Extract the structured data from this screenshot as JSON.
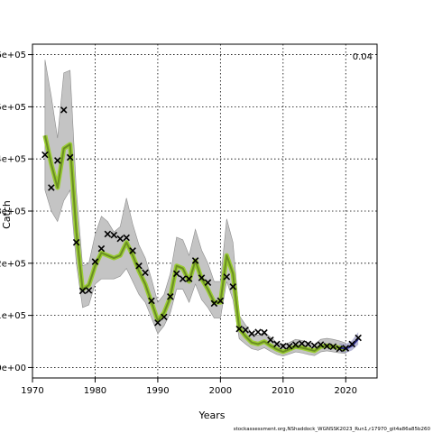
{
  "chart_data": {
    "type": "line",
    "title": "",
    "xlabel": "Years",
    "ylabel": "Catch",
    "corner_label": "0.04",
    "footer": "stockassessment.org,NShaddock_WGNSSK2023_Run1,r17970_git4a86a85b260",
    "xlim": [
      1970,
      2025
    ],
    "ylim": [
      -20000,
      620000
    ],
    "x_ticks": [
      1970,
      1980,
      1990,
      2000,
      2010,
      2020
    ],
    "y_ticks": [
      0,
      100000,
      200000,
      300000,
      400000,
      500000,
      600000
    ],
    "y_tick_labels": [
      "0e+00",
      "1e+05",
      "2e+05",
      "3e+05",
      "4e+05",
      "5e+05",
      "6e+05"
    ],
    "grid": true,
    "colors": {
      "band": "#c4c4c4",
      "band_edge": "#8c8c8c",
      "estimate": "#6b8e23",
      "estimate_outline": "#9acd32",
      "forecast": "#2b2b8a",
      "obs": "#000000"
    },
    "observed": {
      "x": [
        1972,
        1973,
        1974,
        1975,
        1976,
        1977,
        1978,
        1979,
        1980,
        1981,
        1982,
        1983,
        1984,
        1985,
        1986,
        1987,
        1988,
        1989,
        1990,
        1991,
        1992,
        1993,
        1994,
        1995,
        1996,
        1997,
        1998,
        1999,
        2000,
        2001,
        2002,
        2003,
        2004,
        2005,
        2006,
        2007,
        2008,
        2009,
        2010,
        2011,
        2012,
        2013,
        2014,
        2015,
        2016,
        2017,
        2018,
        2019,
        2020,
        2021,
        2022
      ],
      "y": [
        408000,
        345000,
        397000,
        494000,
        403000,
        240000,
        147000,
        148000,
        203000,
        228000,
        256000,
        254000,
        247000,
        249000,
        224000,
        195000,
        182000,
        128000,
        86000,
        97000,
        136000,
        180000,
        170000,
        170000,
        205000,
        172000,
        163000,
        123000,
        128000,
        174000,
        155000,
        74000,
        72000,
        65000,
        68000,
        67000,
        53000,
        45000,
        41000,
        41000,
        44000,
        46000,
        45000,
        42000,
        44000,
        41000,
        40000,
        36000,
        37000,
        45000,
        57000
      ]
    },
    "estimate": {
      "x": [
        1972,
        1973,
        1974,
        1975,
        1976,
        1977,
        1978,
        1979,
        1980,
        1981,
        1982,
        1983,
        1984,
        1985,
        1986,
        1987,
        1988,
        1989,
        1990,
        1991,
        1992,
        1993,
        1994,
        1995,
        1996,
        1997,
        1998,
        1999,
        2000,
        2001,
        2002,
        2003,
        2004,
        2005,
        2006,
        2007,
        2008,
        2009,
        2010,
        2011,
        2012,
        2013,
        2014,
        2015,
        2016,
        2017,
        2018,
        2019,
        2020
      ],
      "y": [
        445000,
        390000,
        345000,
        420000,
        428000,
        260000,
        150000,
        158000,
        195000,
        220000,
        215000,
        210000,
        215000,
        240000,
        215000,
        185000,
        160000,
        125000,
        90000,
        105000,
        135000,
        195000,
        190000,
        165000,
        205000,
        170000,
        150000,
        125000,
        125000,
        215000,
        180000,
        75000,
        60000,
        48000,
        45000,
        50000,
        42000,
        35000,
        30000,
        35000,
        40000,
        38000,
        35000,
        32000,
        40000,
        42000,
        40000,
        38000,
        35000
      ]
    },
    "band": {
      "x": [
        1972,
        1973,
        1974,
        1975,
        1976,
        1977,
        1978,
        1979,
        1980,
        1981,
        1982,
        1983,
        1984,
        1985,
        1986,
        1987,
        1988,
        1989,
        1990,
        1991,
        1992,
        1993,
        1994,
        1995,
        1996,
        1997,
        1998,
        1999,
        2000,
        2001,
        2002,
        2003,
        2004,
        2005,
        2006,
        2007,
        2008,
        2009,
        2010,
        2011,
        2012,
        2013,
        2014,
        2015,
        2016,
        2017,
        2018,
        2019,
        2020
      ],
      "lower": [
        340000,
        300000,
        280000,
        320000,
        340000,
        200000,
        115000,
        120000,
        160000,
        170000,
        170000,
        170000,
        175000,
        190000,
        165000,
        140000,
        125000,
        95000,
        65000,
        80000,
        105000,
        150000,
        150000,
        125000,
        160000,
        130000,
        115000,
        95000,
        95000,
        165000,
        130000,
        55000,
        45000,
        36000,
        33000,
        38000,
        31000,
        25000,
        22000,
        26000,
        30000,
        28000,
        25000,
        23000,
        30000,
        32000,
        30000,
        28000,
        27000
      ],
      "upper": [
        590000,
        520000,
        440000,
        565000,
        570000,
        340000,
        195000,
        200000,
        255000,
        290000,
        280000,
        260000,
        270000,
        325000,
        275000,
        235000,
        210000,
        170000,
        125000,
        140000,
        180000,
        250000,
        245000,
        215000,
        265000,
        225000,
        200000,
        165000,
        165000,
        285000,
        240000,
        100000,
        82000,
        66000,
        62000,
        68000,
        58000,
        48000,
        42000,
        48000,
        54000,
        52000,
        48000,
        44000,
        54000,
        56000,
        54000,
        51000,
        47000
      ]
    },
    "forecast": {
      "x": [
        2019,
        2020,
        2021,
        2022
      ],
      "y": [
        38000,
        36000,
        42000,
        55000
      ],
      "lower": [
        30000,
        28000,
        33000,
        44000
      ],
      "upper": [
        47000,
        45000,
        52000,
        68000
      ]
    }
  }
}
